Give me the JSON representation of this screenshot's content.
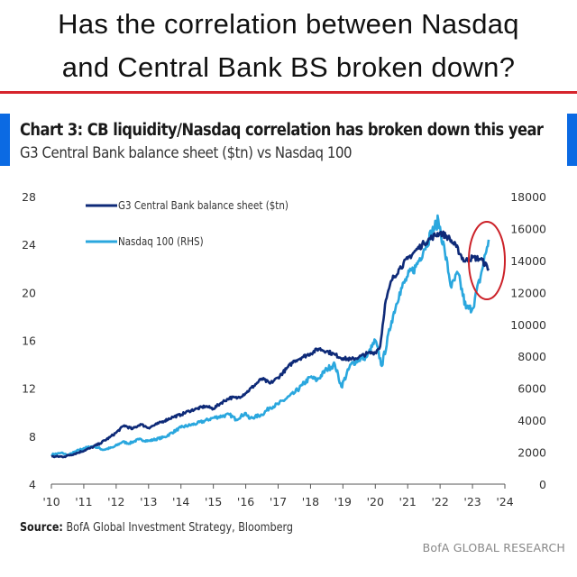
{
  "headline": {
    "line1": "Has the correlation between Nasdaq",
    "line2": "and Central Bank BS broken down?"
  },
  "colors": {
    "headline_rule": "#d6242c",
    "side_bars": "#0b6ae3",
    "series_cb": "#0e2a78",
    "series_nasdaq": "#2aa7de",
    "highlight_circle": "#cc2229"
  },
  "chart_data": {
    "type": "line",
    "title": "Chart 3: CB liquidity/Nasdaq correlation has broken down this year",
    "subtitle": "G3 Central Bank balance sheet ($tn) vs Nasdaq 100",
    "x_tick_labels": [
      "'10",
      "'11",
      "'12",
      "'13",
      "'14",
      "'15",
      "'16",
      "'17",
      "'18",
      "'19",
      "'20",
      "'21",
      "'22",
      "'23",
      "'24"
    ],
    "xlim": [
      2010,
      2024
    ],
    "y_left": {
      "range": [
        4,
        28
      ],
      "ticks": [
        "4",
        "8",
        "12",
        "16",
        "20",
        "24",
        "28"
      ]
    },
    "y_right": {
      "range": [
        0,
        18000
      ],
      "ticks": [
        "0",
        "2000",
        "4000",
        "6000",
        "8000",
        "10000",
        "12000",
        "14000",
        "16000",
        "18000"
      ]
    },
    "grid": false,
    "legend_position": "top-left",
    "annotation": "red ellipse highlighting 2023 divergence",
    "series": [
      {
        "name": "G3 Central Bank balance sheet ($tn)",
        "axis": "left",
        "color": "#0e2a78",
        "points": [
          [
            2010.0,
            6.3
          ],
          [
            2010.4,
            6.3
          ],
          [
            2010.8,
            6.6
          ],
          [
            2011.2,
            7.0
          ],
          [
            2011.5,
            7.4
          ],
          [
            2011.8,
            7.9
          ],
          [
            2012.0,
            8.3
          ],
          [
            2012.25,
            8.9
          ],
          [
            2012.5,
            8.6
          ],
          [
            2012.75,
            9.0
          ],
          [
            2013.0,
            8.7
          ],
          [
            2013.25,
            9.0
          ],
          [
            2013.5,
            9.3
          ],
          [
            2013.75,
            9.6
          ],
          [
            2014.0,
            9.8
          ],
          [
            2014.25,
            10.1
          ],
          [
            2014.5,
            10.3
          ],
          [
            2014.75,
            10.5
          ],
          [
            2015.0,
            10.3
          ],
          [
            2015.25,
            10.8
          ],
          [
            2015.5,
            11.2
          ],
          [
            2015.75,
            11.2
          ],
          [
            2016.0,
            11.6
          ],
          [
            2016.25,
            12.2
          ],
          [
            2016.5,
            12.8
          ],
          [
            2016.75,
            12.4
          ],
          [
            2017.0,
            12.9
          ],
          [
            2017.25,
            13.6
          ],
          [
            2017.5,
            14.3
          ],
          [
            2017.75,
            14.6
          ],
          [
            2018.0,
            14.9
          ],
          [
            2018.25,
            15.3
          ],
          [
            2018.5,
            15.1
          ],
          [
            2018.75,
            14.8
          ],
          [
            2019.0,
            14.5
          ],
          [
            2019.25,
            14.4
          ],
          [
            2019.5,
            14.6
          ],
          [
            2019.75,
            14.9
          ],
          [
            2020.0,
            15.0
          ],
          [
            2020.15,
            15.5
          ],
          [
            2020.3,
            19.0
          ],
          [
            2020.5,
            21.0
          ],
          [
            2020.75,
            22.0
          ],
          [
            2021.0,
            22.8
          ],
          [
            2021.25,
            23.5
          ],
          [
            2021.5,
            24.1
          ],
          [
            2021.75,
            24.6
          ],
          [
            2022.0,
            25.0
          ],
          [
            2022.25,
            24.6
          ],
          [
            2022.5,
            23.8
          ],
          [
            2022.75,
            22.6
          ],
          [
            2023.0,
            22.9
          ],
          [
            2023.25,
            22.8
          ],
          [
            2023.5,
            22.0
          ]
        ]
      },
      {
        "name": "Nasdaq 100 (RHS)",
        "axis": "right",
        "color": "#2aa7de",
        "points": [
          [
            2010.0,
            1860
          ],
          [
            2010.35,
            1950
          ],
          [
            2010.5,
            1800
          ],
          [
            2010.75,
            2050
          ],
          [
            2011.0,
            2250
          ],
          [
            2011.3,
            2380
          ],
          [
            2011.6,
            2150
          ],
          [
            2011.9,
            2300
          ],
          [
            2012.2,
            2650
          ],
          [
            2012.4,
            2550
          ],
          [
            2012.7,
            2800
          ],
          [
            2013.0,
            2700
          ],
          [
            2013.5,
            2950
          ],
          [
            2014.0,
            3550
          ],
          [
            2014.5,
            3800
          ],
          [
            2015.0,
            4150
          ],
          [
            2015.5,
            4350
          ],
          [
            2015.7,
            4050
          ],
          [
            2016.0,
            4450
          ],
          [
            2016.1,
            4100
          ],
          [
            2016.5,
            4350
          ],
          [
            2016.75,
            4800
          ],
          [
            2017.0,
            5000
          ],
          [
            2017.5,
            5700
          ],
          [
            2017.75,
            6200
          ],
          [
            2018.0,
            6700
          ],
          [
            2018.2,
            6500
          ],
          [
            2018.5,
            7200
          ],
          [
            2018.75,
            7500
          ],
          [
            2018.95,
            6100
          ],
          [
            2019.25,
            7500
          ],
          [
            2019.5,
            7800
          ],
          [
            2019.75,
            8000
          ],
          [
            2020.0,
            9000
          ],
          [
            2020.2,
            7400
          ],
          [
            2020.5,
            10200
          ],
          [
            2020.75,
            12000
          ],
          [
            2021.0,
            13000
          ],
          [
            2021.25,
            13600
          ],
          [
            2021.5,
            14700
          ],
          [
            2021.75,
            15800
          ],
          [
            2021.95,
            16500
          ],
          [
            2022.15,
            14500
          ],
          [
            2022.35,
            12300
          ],
          [
            2022.55,
            13200
          ],
          [
            2022.8,
            11000
          ],
          [
            2023.0,
            11000
          ],
          [
            2023.25,
            13000
          ],
          [
            2023.5,
            15300
          ]
        ]
      }
    ]
  },
  "source": {
    "label": "Source:",
    "text": "BofA Global Investment Strategy, Bloomberg"
  },
  "footer": {
    "brand": "BofA GLOBAL RESEARCH"
  }
}
